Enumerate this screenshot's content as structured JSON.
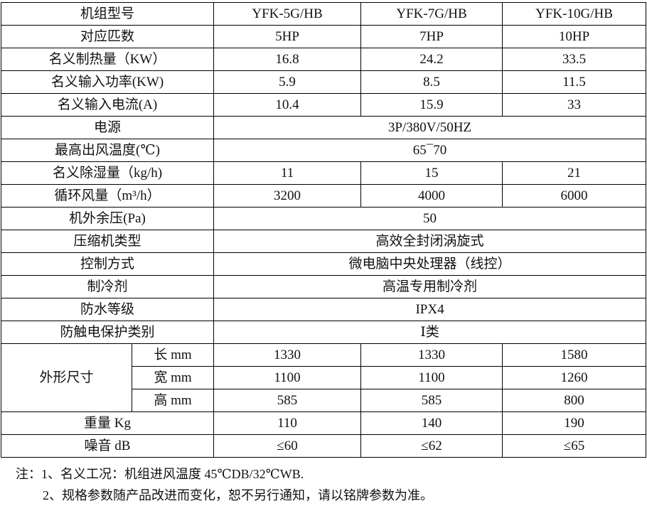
{
  "header": {
    "label": "机组型号",
    "models": [
      "YFK-5G/HB",
      "YFK-7G/HB",
      "YFK-10G/HB"
    ]
  },
  "rows_before": [
    {
      "label": "对应匹数",
      "values": [
        "5HP",
        "7HP",
        "10HP"
      ]
    },
    {
      "label": "名义制热量（KW）",
      "values": [
        "16.8",
        "24.2",
        "33.5"
      ]
    },
    {
      "label": "名义输入功率(KW)",
      "values": [
        "5.9",
        "8.5",
        "11.5"
      ]
    },
    {
      "label": "名义输入电流(A)",
      "values": [
        "10.4",
        "15.9",
        "33"
      ]
    },
    {
      "label": "电源",
      "merged": "3P/380V/50HZ"
    },
    {
      "label": "最高出风温度(℃)",
      "merged": "65¯70"
    },
    {
      "label": "名义除湿量（kg/h)",
      "values": [
        "11",
        "15",
        "21"
      ]
    },
    {
      "label": "循环风量（m³/h）",
      "values": [
        "3200",
        "4000",
        "6000"
      ]
    },
    {
      "label": "机外余压(Pa)",
      "merged": "50"
    },
    {
      "label": "压缩机类型",
      "merged": "高效全封闭涡旋式"
    },
    {
      "label": "控制方式",
      "merged": "微电脑中央处理器（线控）"
    },
    {
      "label": "制冷剂",
      "merged": "高温专用制冷剂"
    },
    {
      "label": "防水等级",
      "merged": "IPX4"
    },
    {
      "label": "防触电保护类别",
      "merged": "Ⅰ类"
    }
  ],
  "dimensions": {
    "label": "外形尺寸",
    "rows": [
      {
        "label": "长 mm",
        "values": [
          "1330",
          "1330",
          "1580"
        ]
      },
      {
        "label": "宽 mm",
        "values": [
          "1100",
          "1100",
          "1260"
        ]
      },
      {
        "label": "高 mm",
        "values": [
          "585",
          "585",
          "800"
        ]
      }
    ]
  },
  "rows_after": [
    {
      "label": "重量 Kg",
      "values": [
        "110",
        "140",
        "190"
      ]
    },
    {
      "label": "噪音 dB",
      "values": [
        "≤60",
        "≤62",
        "≤65"
      ]
    }
  ],
  "notes": [
    "注：1、名义工况：机组进风温度 45℃DB/32℃WB.",
    "2、规格参数随产品改进而变化，恕不另行通知，请以铭牌参数为准。"
  ]
}
